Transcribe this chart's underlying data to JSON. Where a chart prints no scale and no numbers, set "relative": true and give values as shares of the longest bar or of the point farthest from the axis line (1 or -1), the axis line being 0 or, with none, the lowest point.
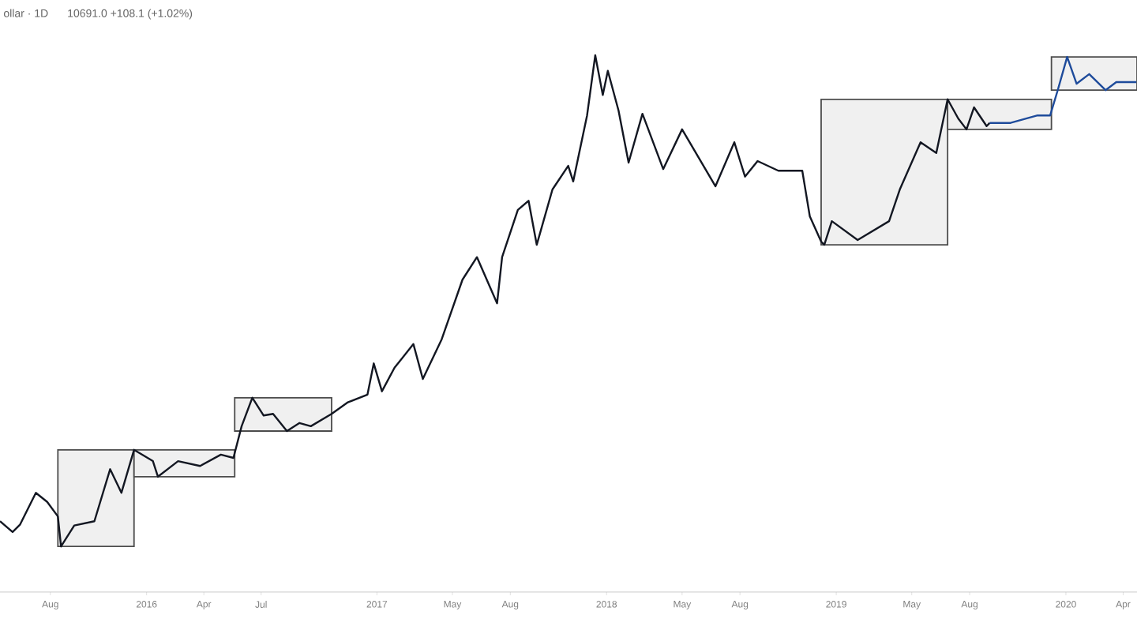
{
  "chart_data": {
    "type": "line",
    "title": "ollar · 1D",
    "subtitle": "10691.0  +108.1 (+1.02%)",
    "relative": true,
    "xlim": [
      "2015-05-13",
      "2020-04-23"
    ],
    "xticks": [
      {
        "value": "2015-08-01",
        "label": "Aug"
      },
      {
        "value": "2016-01-01",
        "label": "2016"
      },
      {
        "value": "2016-04-01",
        "label": "Apr"
      },
      {
        "value": "2016-07-01",
        "label": "Jul"
      },
      {
        "value": "2017-01-01",
        "label": "2017"
      },
      {
        "value": "2017-05-01",
        "label": "May"
      },
      {
        "value": "2017-08-01",
        "label": "Aug"
      },
      {
        "value": "2018-01-01",
        "label": "2018"
      },
      {
        "value": "2018-05-01",
        "label": "May"
      },
      {
        "value": "2018-08-01",
        "label": "Aug"
      },
      {
        "value": "2019-01-01",
        "label": "2019"
      },
      {
        "value": "2019-05-01",
        "label": "May"
      },
      {
        "value": "2019-08-01",
        "label": "Aug"
      },
      {
        "value": "2020-01-01",
        "label": "2020"
      },
      {
        "value": "2020-04-01",
        "label": "Apr"
      }
    ],
    "series": [
      {
        "color": "#131722",
        "x": [
          "2015-05-13",
          "2015-06-02",
          "2015-06-14",
          "2015-07-09",
          "2015-07-27",
          "2015-08-13",
          "2015-08-18",
          "2015-09-08",
          "2015-10-10",
          "2015-11-04",
          "2015-11-22",
          "2015-12-12",
          "2016-01-11",
          "2016-01-19",
          "2016-02-20",
          "2016-03-26",
          "2016-04-28",
          "2016-05-18",
          "2016-05-31",
          "2016-06-17",
          "2016-07-05",
          "2016-07-20",
          "2016-08-11",
          "2016-08-31",
          "2016-09-18",
          "2016-10-21",
          "2016-11-15",
          "2016-12-17",
          "2016-12-27",
          "2017-01-09",
          "2017-01-29",
          "2017-02-28",
          "2017-03-15",
          "2017-04-14",
          "2017-05-17",
          "2017-06-09",
          "2017-07-11",
          "2017-07-19",
          "2017-08-13",
          "2017-08-30",
          "2017-09-12",
          "2017-10-07",
          "2017-11-01",
          "2017-11-09",
          "2017-12-01",
          "2017-12-14",
          "2017-12-26",
          "2018-01-03",
          "2018-01-20",
          "2018-02-05",
          "2018-02-27",
          "2018-04-01",
          "2018-05-01",
          "2018-06-23",
          "2018-07-23",
          "2018-08-09",
          "2018-08-29",
          "2018-10-01",
          "2018-11-08",
          "2018-11-20",
          "2018-12-08",
          "2018-12-13",
          "2018-12-25",
          "2019-02-04",
          "2019-03-26",
          "2019-04-12",
          "2019-05-15",
          "2019-06-09",
          "2019-06-27",
          "2019-07-14",
          "2019-07-27",
          "2019-08-08",
          "2019-08-28",
          "2019-09-02"
        ],
        "values": [
          0.132,
          0.112,
          0.126,
          0.185,
          0.168,
          0.141,
          0.085,
          0.124,
          0.132,
          0.229,
          0.185,
          0.265,
          0.244,
          0.215,
          0.244,
          0.235,
          0.256,
          0.25,
          0.309,
          0.362,
          0.329,
          0.332,
          0.3,
          0.315,
          0.309,
          0.332,
          0.353,
          0.368,
          0.426,
          0.374,
          0.418,
          0.462,
          0.397,
          0.471,
          0.582,
          0.624,
          0.538,
          0.624,
          0.712,
          0.729,
          0.647,
          0.75,
          0.794,
          0.765,
          0.888,
          1.0,
          0.926,
          0.971,
          0.897,
          0.8,
          0.891,
          0.788,
          0.862,
          0.756,
          0.838,
          0.774,
          0.803,
          0.785,
          0.785,
          0.7,
          0.653,
          0.647,
          0.691,
          0.656,
          0.691,
          0.75,
          0.838,
          0.818,
          0.918,
          0.882,
          0.862,
          0.903,
          0.868,
          0.874
        ]
      },
      {
        "color": "#1e4b9b",
        "x": [
          "2019-09-02",
          "2019-10-05",
          "2019-11-17",
          "2019-12-07",
          "2019-12-19",
          "2020-01-03",
          "2020-01-18",
          "2020-02-07",
          "2020-03-04",
          "2020-03-21",
          "2020-04-22"
        ],
        "values": [
          0.874,
          0.874,
          0.888,
          0.888,
          0.935,
          0.997,
          0.947,
          0.965,
          0.935,
          0.95,
          0.95
        ]
      }
    ],
    "bands": [
      {
        "axis": "x",
        "from": "2015-08-13",
        "to": "2015-12-12",
        "color": "#f0f0f0"
      },
      {
        "axis": "x",
        "from": "2015-12-12",
        "to": "2016-05-20",
        "color": "#f0f0f0"
      },
      {
        "axis": "x",
        "from": "2016-05-20",
        "to": "2016-10-21",
        "color": "#f0f0f0"
      },
      {
        "axis": "x",
        "from": "2018-12-08",
        "to": "2019-06-27",
        "color": "#f0f0f0"
      },
      {
        "axis": "x",
        "from": "2019-06-27",
        "to": "2019-12-09",
        "color": "#f0f0f0"
      },
      {
        "axis": "x",
        "from": "2019-12-09",
        "to": "2020-04-23",
        "color": "#f0f0f0"
      }
    ]
  }
}
